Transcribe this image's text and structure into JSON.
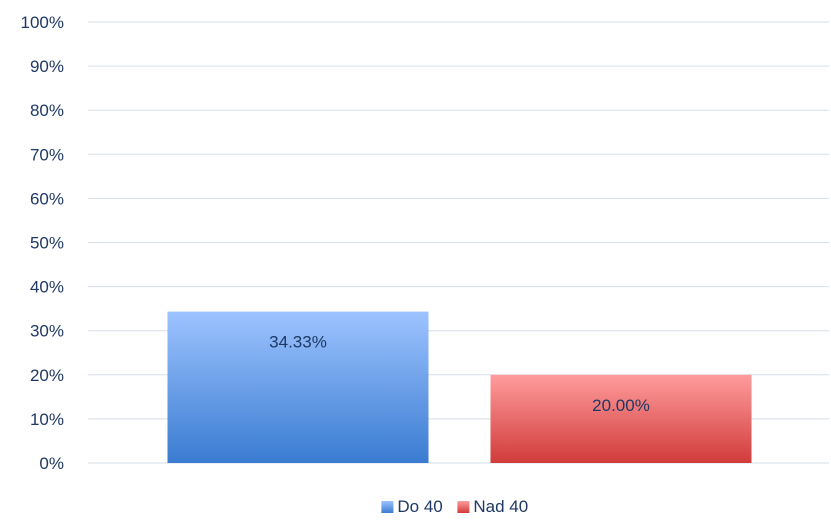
{
  "chart_data": {
    "type": "bar",
    "categories": [
      ""
    ],
    "series": [
      {
        "name": "Do 40",
        "values": [
          34.33
        ],
        "data_label": "34.33%",
        "color_top": "#9dc3ff",
        "color_bottom": "#3a7cd1"
      },
      {
        "name": "Nad 40",
        "values": [
          20.0
        ],
        "data_label": "20.00%",
        "color_top": "#ff9c9c",
        "color_bottom": "#d13b3b"
      }
    ],
    "yticks": [
      "0%",
      "10%",
      "20%",
      "30%",
      "40%",
      "50%",
      "60%",
      "70%",
      "80%",
      "90%",
      "100%"
    ],
    "ylim": [
      0,
      100
    ],
    "grid": true,
    "grid_color": "#d5dfe9",
    "legend_position": "bottom",
    "title": "",
    "xlabel": "",
    "ylabel": ""
  }
}
